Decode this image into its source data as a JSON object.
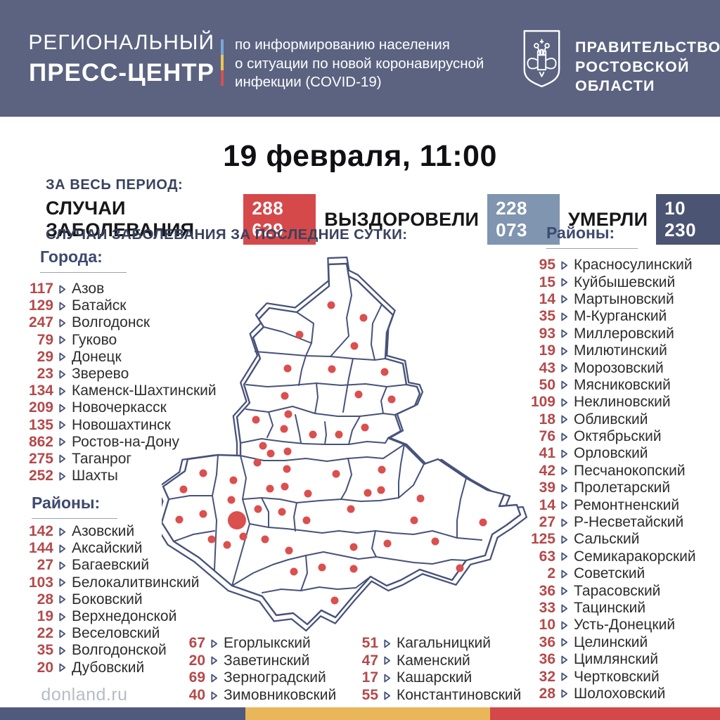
{
  "header": {
    "logo_line1": "РЕГИОНАЛЬНЫЙ",
    "logo_line2": "ПРЕСС-ЦЕНТР",
    "subtitle_lines": [
      "по информированию населения",
      "о ситуации по новой коронавирусной",
      "инфекции (COVID-19)"
    ],
    "government_lines": [
      "ПРАВИТЕЛЬСТВО",
      "РОСТОВСКОЙ",
      "ОБЛАСТИ"
    ]
  },
  "date_line": "19 февраля, 11:00",
  "totals": {
    "period_label": "ЗА ВЕСЬ ПЕРИОД:",
    "cases_label": "СЛУЧАИ ЗАБОЛЕВАНИЯ",
    "cases_value": "288 629",
    "recovered_label": "ВЫЗДОРОВЕЛИ",
    "recovered_value": "228 073",
    "deaths_label": "УМЕРЛИ",
    "deaths_value": "10 230"
  },
  "daily_label": "СЛУЧАИ ЗАБОЛЕВАНИЯ ЗА ПОСЛЕДНИЕ СУТКИ:",
  "cities": {
    "title": "Города:",
    "items": [
      {
        "value": 117,
        "name": "Азов"
      },
      {
        "value": 129,
        "name": "Батайск"
      },
      {
        "value": 247,
        "name": "Волгодонск"
      },
      {
        "value": 79,
        "name": "Гуково"
      },
      {
        "value": 29,
        "name": "Донецк"
      },
      {
        "value": 23,
        "name": "Зверево"
      },
      {
        "value": 134,
        "name": "Каменск-Шахтинский"
      },
      {
        "value": 209,
        "name": "Новочеркасск"
      },
      {
        "value": 135,
        "name": "Новошахтинск"
      },
      {
        "value": 862,
        "name": "Ростов-на-Дону"
      },
      {
        "value": 275,
        "name": "Таганрог"
      },
      {
        "value": 252,
        "name": "Шахты"
      }
    ]
  },
  "districts_left": {
    "title": "Районы:",
    "items": [
      {
        "value": 142,
        "name": "Азовский"
      },
      {
        "value": 144,
        "name": "Аксайский"
      },
      {
        "value": 27,
        "name": "Багаевский"
      },
      {
        "value": 103,
        "name": "Белокалитвинский"
      },
      {
        "value": 28,
        "name": "Боковский"
      },
      {
        "value": 19,
        "name": "Верхнедонской"
      },
      {
        "value": 22,
        "name": "Веселовский"
      },
      {
        "value": 35,
        "name": "Волгодонской"
      },
      {
        "value": 20,
        "name": "Дубовский"
      }
    ]
  },
  "districts_bottom_left": {
    "items": [
      {
        "value": 67,
        "name": "Егорлыкский"
      },
      {
        "value": 20,
        "name": "Заветинский"
      },
      {
        "value": 69,
        "name": "Зерноградский"
      },
      {
        "value": 40,
        "name": "Зимовниковский"
      }
    ]
  },
  "districts_bottom_right": {
    "items": [
      {
        "value": 51,
        "name": "Кагальницкий"
      },
      {
        "value": 47,
        "name": "Каменский"
      },
      {
        "value": 17,
        "name": "Кашарский"
      },
      {
        "value": 55,
        "name": "Константиновский"
      }
    ]
  },
  "districts_right": {
    "title": "Районы:",
    "items": [
      {
        "value": 95,
        "name": "Красносулинский"
      },
      {
        "value": 15,
        "name": "Куйбышевский"
      },
      {
        "value": 14,
        "name": "Мартыновский"
      },
      {
        "value": 35,
        "name": "М-Курганский"
      },
      {
        "value": 93,
        "name": "Миллеровский"
      },
      {
        "value": 19,
        "name": "Милютинский"
      },
      {
        "value": 43,
        "name": "Морозовский"
      },
      {
        "value": 50,
        "name": "Мясниковский"
      },
      {
        "value": 109,
        "name": "Неклиновский"
      },
      {
        "value": 18,
        "name": "Обливский"
      },
      {
        "value": 76,
        "name": "Октябрьский"
      },
      {
        "value": 41,
        "name": "Орловский"
      },
      {
        "value": 42,
        "name": "Песчанокопский"
      },
      {
        "value": 39,
        "name": "Пролетарский"
      },
      {
        "value": 14,
        "name": "Ремонтненский"
      },
      {
        "value": 27,
        "name": "Р-Несветайский"
      },
      {
        "value": 125,
        "name": "Сальский"
      },
      {
        "value": 63,
        "name": "Семикаракорский"
      },
      {
        "value": 2,
        "name": "Советский"
      },
      {
        "value": 36,
        "name": "Тарасовский"
      },
      {
        "value": 33,
        "name": "Тацинский"
      },
      {
        "value": 10,
        "name": "Усть-Донецкий"
      },
      {
        "value": 36,
        "name": "Целинский"
      },
      {
        "value": 36,
        "name": "Цимлянский"
      },
      {
        "value": 32,
        "name": "Чертковский"
      },
      {
        "value": 28,
        "name": "Шолоховский"
      }
    ]
  },
  "footer": {
    "site": "donland.ru"
  },
  "map": {
    "dot_color": "#db4f4e",
    "dot_radius": 5.5,
    "dots": [
      [
        241,
        74
      ],
      [
        287,
        92
      ],
      [
        196,
        116
      ],
      [
        274,
        132
      ],
      [
        179,
        164
      ],
      [
        242,
        165
      ],
      [
        317,
        169
      ],
      [
        280,
        201
      ],
      [
        327,
        208
      ],
      [
        175,
        203
      ],
      [
        180,
        229
      ],
      [
        134,
        237
      ],
      [
        174,
        250
      ],
      [
        289,
        248
      ],
      [
        215,
        258
      ],
      [
        252,
        258
      ],
      [
        144,
        274
      ],
      [
        155,
        285
      ],
      [
        179,
        282
      ],
      [
        136,
        298
      ],
      [
        59,
        313
      ],
      [
        102,
        323
      ],
      [
        178,
        307
      ],
      [
        31,
        336
      ],
      [
        99,
        351
      ],
      [
        154,
        335
      ],
      [
        175,
        332
      ],
      [
        208,
        342
      ],
      [
        248,
        314
      ],
      [
        313,
        308
      ],
      [
        293,
        341
      ],
      [
        312,
        337
      ],
      [
        269,
        364
      ],
      [
        368,
        349
      ],
      [
        59,
        371
      ],
      [
        25,
        379
      ],
      [
        107,
        380,
        13
      ],
      [
        137,
        364
      ],
      [
        171,
        368
      ],
      [
        206,
        380
      ],
      [
        359,
        380
      ],
      [
        457,
        383
      ],
      [
        71,
        407
      ],
      [
        93,
        415
      ],
      [
        116,
        403
      ],
      [
        147,
        407
      ],
      [
        181,
        423
      ],
      [
        273,
        418
      ],
      [
        321,
        413
      ],
      [
        389,
        410
      ],
      [
        228,
        447
      ],
      [
        273,
        449
      ],
      [
        188,
        453
      ],
      [
        424,
        448
      ],
      [
        246,
        494
      ]
    ]
  },
  "colors": {
    "header_bg": "#5b6380",
    "accent_red": "#d5494b",
    "badge_recovered": "#7f95b0",
    "badge_deaths": "#4b5472",
    "number_red": "#b5494a",
    "map_stroke": "#47527a",
    "stripe_blue": "#4f5a7d",
    "stripe_yellow": "#e9b75a",
    "stripe_red": "#d5484a",
    "flag_blue": "#7aa6d8",
    "flag_yellow": "#edc558"
  }
}
